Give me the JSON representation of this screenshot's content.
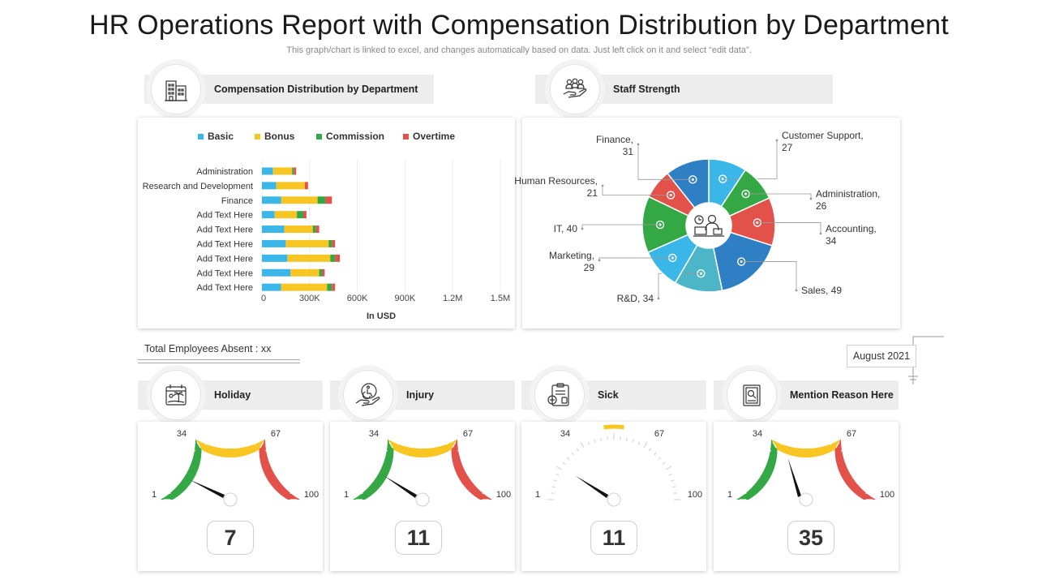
{
  "title": "HR Operations Report with Compensation Distribution by Department",
  "subtitle": "This graph/chart is linked to excel, and changes automatically based on data. Just left click on it and select “edit data”.",
  "sections": {
    "compensation": {
      "label": "Compensation Distribution by Department",
      "icon": "office-building-icon"
    },
    "staff": {
      "label": "Staff Strength",
      "icon": "team-hand-icon"
    }
  },
  "absent_label": "Total Employees Absent : xx",
  "date_label": "August 2021",
  "colors": {
    "basic": "#3ab6e8",
    "bonus": "#f7c623",
    "commission": "#35a846",
    "overtime": "#e2524a",
    "blue": "#2f7fc4",
    "teal": "#4cb5c7"
  },
  "chart_data": [
    {
      "type": "bar",
      "orientation": "horizontal",
      "stacked": true,
      "categories": [
        "Administration",
        "Research and Development",
        "Finance",
        "Add Text Here",
        "Add Text Here",
        "Add Text Here",
        "Add Text Here",
        "Add Text Here",
        "Add Text Here"
      ],
      "series": [
        {
          "name": "Basic",
          "values": [
            70000,
            90000,
            120000,
            80000,
            140000,
            150000,
            160000,
            180000,
            120000
          ]
        },
        {
          "name": "Bonus",
          "values": [
            120000,
            180000,
            230000,
            140000,
            180000,
            270000,
            270000,
            180000,
            290000
          ]
        },
        {
          "name": "Commission",
          "values": [
            10000,
            0,
            50000,
            40000,
            20000,
            20000,
            30000,
            20000,
            30000
          ]
        },
        {
          "name": "Overtime",
          "values": [
            15000,
            20000,
            40000,
            20000,
            20000,
            20000,
            30000,
            15000,
            20000
          ]
        }
      ],
      "x_ticks": [
        "0",
        "300K",
        "600K",
        "900K",
        "1.2M",
        "1.5M"
      ],
      "xlim": [
        0,
        1500000
      ],
      "xlabel": "In USD",
      "legend_position": "top",
      "grid": true
    },
    {
      "type": "pie",
      "style": "donut",
      "slices": [
        {
          "label": "Customer Support",
          "value": 27,
          "text": "Customer Support, 27",
          "color": "#3ab6e8"
        },
        {
          "label": "Administration",
          "value": 26,
          "text": "Administration, 26",
          "color": "#35a846"
        },
        {
          "label": "Accounting",
          "value": 34,
          "text": "Accounting, 34",
          "color": "#e2524a"
        },
        {
          "label": "Sales",
          "value": 49,
          "text": "Sales, 49",
          "color": "#2f7fc4"
        },
        {
          "label": "R&D",
          "value": 34,
          "text": "R&D, 34",
          "color": "#4cb5c7"
        },
        {
          "label": "Marketing",
          "value": 29,
          "text": "Marketing, 29",
          "color": "#3ab6e8"
        },
        {
          "label": "IT",
          "value": 40,
          "text": "IT, 40",
          "color": "#35a846"
        },
        {
          "label": "Human Resources",
          "value": 21,
          "text": "Human Resources, 21",
          "color": "#e2524a"
        },
        {
          "label": "Finance",
          "value": 31,
          "text": "Finance, 31",
          "color": "#2f7fc4"
        }
      ]
    }
  ],
  "gauges": [
    {
      "label": "Holiday",
      "icon": "beach-calendar-icon",
      "value": "7",
      "min": "1",
      "mid1": "34",
      "mid2": "67",
      "max": "100",
      "colored": true
    },
    {
      "label": "Injury",
      "icon": "injury-hand-icon",
      "value": "11",
      "min": "1",
      "mid1": "34",
      "mid2": "67",
      "max": "100",
      "colored": true
    },
    {
      "label": "Sick",
      "icon": "medical-kit-icon",
      "value": "11",
      "min": "1",
      "mid1": "34",
      "mid2": "67",
      "max": "100",
      "colored": false
    },
    {
      "label": "Mention Reason Here",
      "icon": "report-document-icon",
      "value": "35",
      "min": "1",
      "mid1": "34",
      "mid2": "67",
      "max": "100",
      "colored": true
    }
  ]
}
